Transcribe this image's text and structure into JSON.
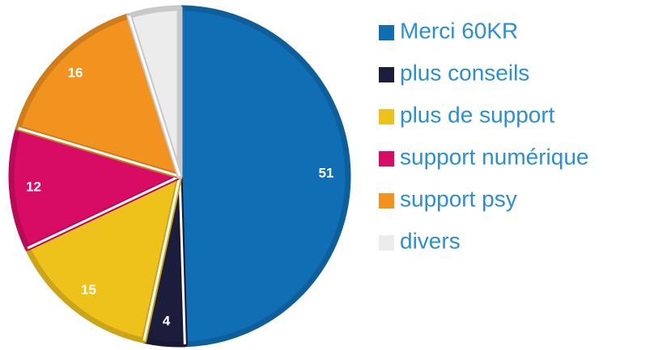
{
  "chart_data": {
    "type": "pie",
    "categories": [
      "Merci 60KR",
      "plus conseils",
      "plus de support",
      "support numérique",
      "support psy",
      "divers"
    ],
    "values": [
      51,
      4,
      15,
      12,
      16,
      5
    ],
    "value_labels": [
      "51",
      "4",
      "15",
      "12",
      "16",
      null
    ],
    "colors": [
      "#0f6eb4",
      "#1c1c3c",
      "#efc21b",
      "#d90c65",
      "#f2931f",
      "#ececec"
    ],
    "legend": "right"
  }
}
